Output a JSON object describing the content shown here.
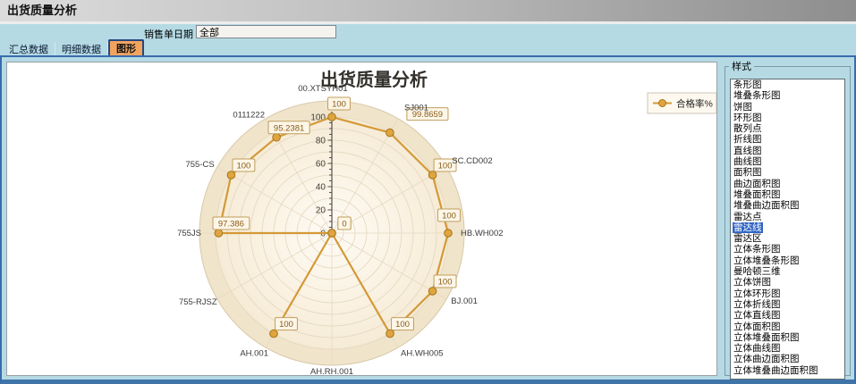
{
  "window": {
    "title": "出货质量分析"
  },
  "filter": {
    "label": "销售单日期",
    "value": "全部"
  },
  "tabs": [
    {
      "label": "汇总数据",
      "selected": false
    },
    {
      "label": "明细数据",
      "selected": false
    },
    {
      "label": "图形",
      "selected": true
    }
  ],
  "style_panel": {
    "title": "样式",
    "selected": "雷达线",
    "options": [
      "条形图",
      "堆叠条形图",
      "饼图",
      "环形图",
      "散列点",
      "折线图",
      "直线图",
      "曲线图",
      "面积图",
      "曲边面积图",
      "堆叠面积图",
      "堆叠曲边面积图",
      "雷达点",
      "雷达线",
      "雷达区",
      "立体条形图",
      "立体堆叠条形图",
      "曼哈顿三维",
      "立体饼图",
      "立体环形图",
      "立体折线图",
      "立体直线图",
      "立体面积图",
      "立体堆叠面积图",
      "立体曲线图",
      "立体曲边面积图",
      "立体堆叠曲边面积图"
    ]
  },
  "chart_data": {
    "type": "radar",
    "title": "出货质量分析",
    "legend": [
      {
        "name": "合格率%",
        "color": "#D49937"
      }
    ],
    "legend_position": "top-right",
    "categories": [
      "00.XTSYH01",
      "SJ001",
      "SC.CD002",
      "HB.WH002",
      "BJ.001",
      "AH.WH005",
      "AH.RH.001",
      "AH.001",
      "755-RJSZ",
      "755JS",
      "755-CS",
      "0111222"
    ],
    "series": [
      {
        "name": "合格率%",
        "values": [
          100,
          99.8659,
          100,
          100,
          100,
          100,
          0,
          100,
          0,
          97.386,
          100,
          95.2381
        ],
        "labels": [
          "100",
          "99.8659",
          "100",
          "100",
          "100",
          "100",
          "0",
          "100",
          "0",
          "97.386",
          "100",
          "95.2381"
        ]
      }
    ],
    "axis": {
      "min": 0,
      "max": 100,
      "major_step": 20,
      "minor_step": 5,
      "tick_labels": [
        "0",
        "20",
        "40",
        "60",
        "80",
        "100"
      ],
      "grid": true
    },
    "colors": {
      "line": "#D49937",
      "point_fill": "#DFA53E",
      "point_stroke": "#A8741C",
      "label_box_bg": "#FCF6E8",
      "label_box_border": "#C19E5D",
      "label_text": "#8A5A17",
      "plot_center": "#FEFBF5",
      "plot_edge": "#F5EBD6",
      "plot_ring": "#F0E4CB",
      "ring_stroke": "#D8C9A9",
      "grid_line": "#E3D6BD",
      "axis_line": "#55514B",
      "tick_text": "#44403A",
      "category_text": "#3A3A3A",
      "title_text": "#33302B",
      "legend_bg": "#FDF9EE",
      "legend_border": "#CCC5B9"
    }
  }
}
